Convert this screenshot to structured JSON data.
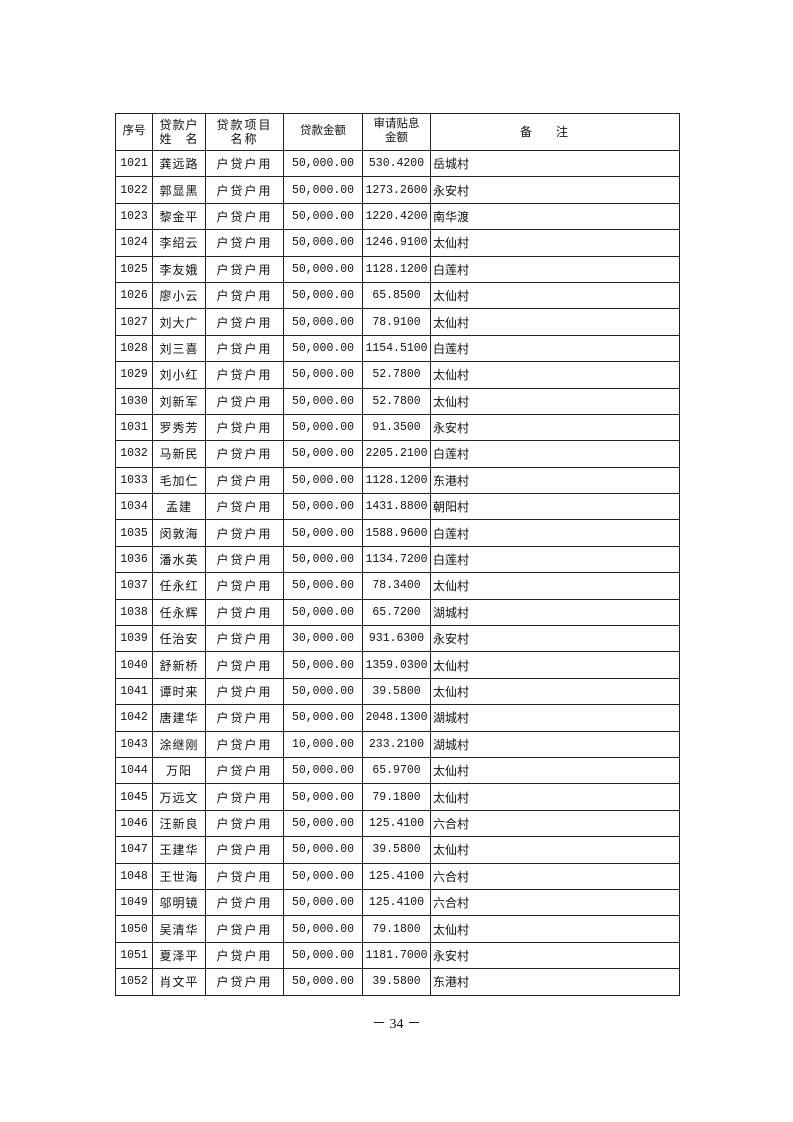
{
  "table": {
    "headers": [
      "序号",
      "贷款户\n姓　名",
      "贷款项目\n名称",
      "贷款金额",
      "审请贴息\n金额",
      "备注"
    ],
    "rows": [
      [
        "1021",
        "龚远路",
        "户贷户用",
        "50,000.00",
        "530.4200",
        "岳城村"
      ],
      [
        "1022",
        "郭显黑",
        "户贷户用",
        "50,000.00",
        "1273.2600",
        "永安村"
      ],
      [
        "1023",
        "黎金平",
        "户贷户用",
        "50,000.00",
        "1220.4200",
        "南华渡"
      ],
      [
        "1024",
        "李绍云",
        "户贷户用",
        "50,000.00",
        "1246.9100",
        "太仙村"
      ],
      [
        "1025",
        "李友娥",
        "户贷户用",
        "50,000.00",
        "1128.1200",
        "白莲村"
      ],
      [
        "1026",
        "廖小云",
        "户贷户用",
        "50,000.00",
        "65.8500",
        "太仙村"
      ],
      [
        "1027",
        "刘大广",
        "户贷户用",
        "50,000.00",
        "78.9100",
        "太仙村"
      ],
      [
        "1028",
        "刘三喜",
        "户贷户用",
        "50,000.00",
        "1154.5100",
        "白莲村"
      ],
      [
        "1029",
        "刘小红",
        "户贷户用",
        "50,000.00",
        "52.7800",
        "太仙村"
      ],
      [
        "1030",
        "刘新军",
        "户贷户用",
        "50,000.00",
        "52.7800",
        "太仙村"
      ],
      [
        "1031",
        "罗秀芳",
        "户贷户用",
        "50,000.00",
        "91.3500",
        "永安村"
      ],
      [
        "1032",
        "马新民",
        "户贷户用",
        "50,000.00",
        "2205.2100",
        "白莲村"
      ],
      [
        "1033",
        "毛加仁",
        "户贷户用",
        "50,000.00",
        "1128.1200",
        "东港村"
      ],
      [
        "1034",
        "孟建",
        "户贷户用",
        "50,000.00",
        "1431.8800",
        "朝阳村"
      ],
      [
        "1035",
        "闵敦海",
        "户贷户用",
        "50,000.00",
        "1588.9600",
        "白莲村"
      ],
      [
        "1036",
        "潘水英",
        "户贷户用",
        "50,000.00",
        "1134.7200",
        "白莲村"
      ],
      [
        "1037",
        "任永红",
        "户贷户用",
        "50,000.00",
        "78.3400",
        "太仙村"
      ],
      [
        "1038",
        "任永辉",
        "户贷户用",
        "50,000.00",
        "65.7200",
        "湖城村"
      ],
      [
        "1039",
        "任治安",
        "户贷户用",
        "30,000.00",
        "931.6300",
        "永安村"
      ],
      [
        "1040",
        "舒新桥",
        "户贷户用",
        "50,000.00",
        "1359.0300",
        "太仙村"
      ],
      [
        "1041",
        "谭时来",
        "户贷户用",
        "50,000.00",
        "39.5800",
        "太仙村"
      ],
      [
        "1042",
        "唐建华",
        "户贷户用",
        "50,000.00",
        "2048.1300",
        "湖城村"
      ],
      [
        "1043",
        "涂继刚",
        "户贷户用",
        "10,000.00",
        "233.2100",
        "湖城村"
      ],
      [
        "1044",
        "万阳",
        "户贷户用",
        "50,000.00",
        "65.9700",
        "太仙村"
      ],
      [
        "1045",
        "万远文",
        "户贷户用",
        "50,000.00",
        "79.1800",
        "太仙村"
      ],
      [
        "1046",
        "汪新良",
        "户贷户用",
        "50,000.00",
        "125.4100",
        "六合村"
      ],
      [
        "1047",
        "王建华",
        "户贷户用",
        "50,000.00",
        "39.5800",
        "太仙村"
      ],
      [
        "1048",
        "王世海",
        "户贷户用",
        "50,000.00",
        "125.4100",
        "六合村"
      ],
      [
        "1049",
        "邬明镜",
        "户贷户用",
        "50,000.00",
        "125.4100",
        "六合村"
      ],
      [
        "1050",
        "吴清华",
        "户贷户用",
        "50,000.00",
        "79.1800",
        "太仙村"
      ],
      [
        "1051",
        "夏泽平",
        "户贷户用",
        "50,000.00",
        "1181.7000",
        "永安村"
      ],
      [
        "1052",
        "肖文平",
        "户贷户用",
        "50,000.00",
        "39.5800",
        "东港村"
      ]
    ]
  },
  "page_number": "－ 34 －"
}
